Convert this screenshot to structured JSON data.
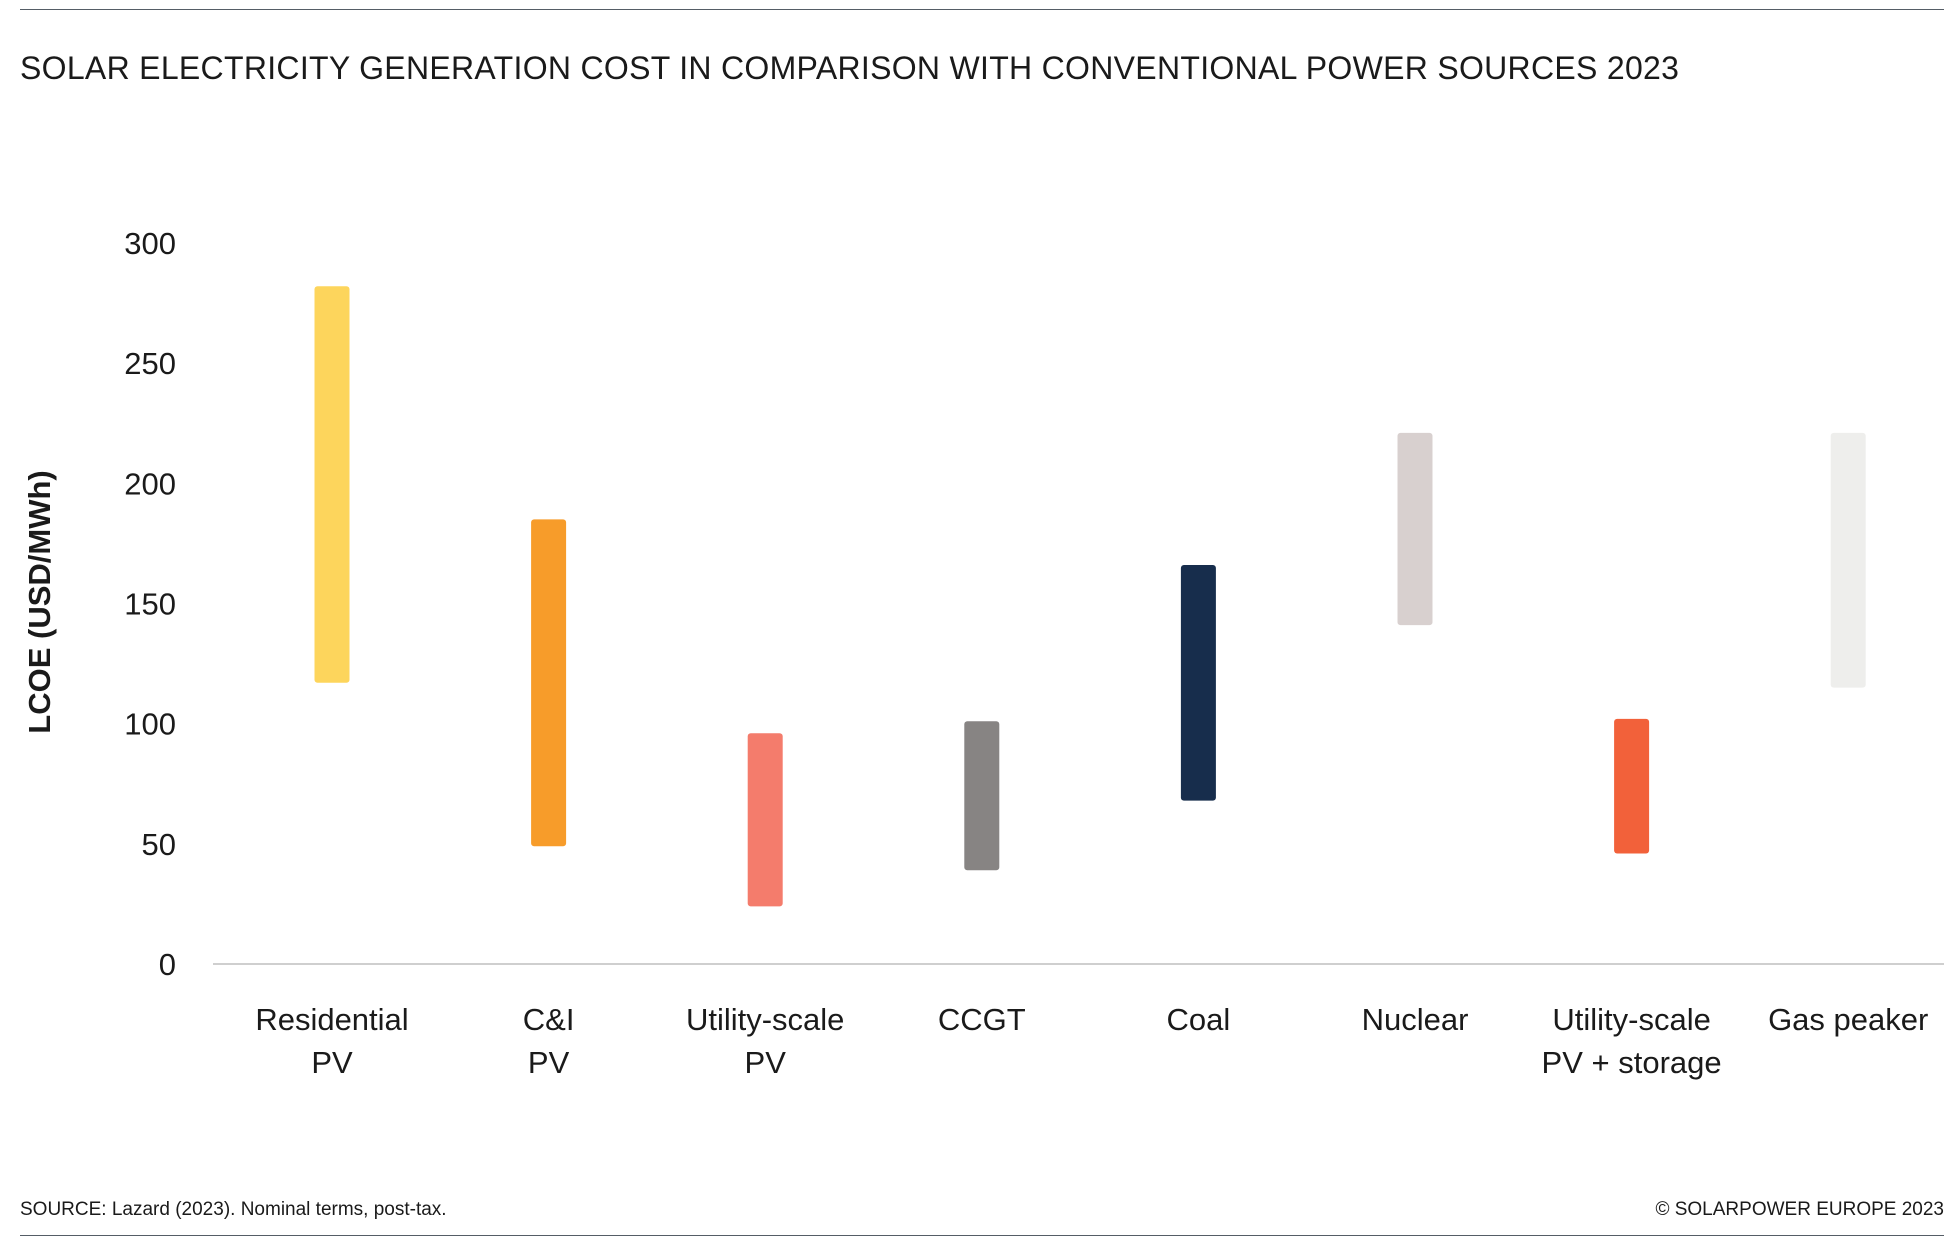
{
  "title": "SOLAR ELECTRICITY GENERATION COST IN COMPARISON WITH CONVENTIONAL POWER SOURCES 2023",
  "footer": {
    "source": "SOURCE: Lazard (2023). Nominal terms, post-tax.",
    "copyright": "© SOLARPOWER EUROPE 2023"
  },
  "chart_data": {
    "type": "bar",
    "subtype": "floating-range",
    "title": "SOLAR ELECTRICITY GENERATION COST IN COMPARISON WITH CONVENTIONAL POWER SOURCES 2023",
    "ylabel": "LCOE (USD/MWh)",
    "xlabel": "",
    "ylim": [
      0,
      300
    ],
    "yticks": [
      0,
      50,
      100,
      150,
      200,
      250,
      300
    ],
    "grid": false,
    "categories": [
      [
        "Residential",
        "PV"
      ],
      [
        "C&I",
        "PV"
      ],
      [
        "Utility-scale",
        "PV"
      ],
      [
        "CCGT"
      ],
      [
        "Coal"
      ],
      [
        "Nuclear"
      ],
      [
        "Utility-scale",
        "PV + storage"
      ],
      [
        "Gas peaker"
      ]
    ],
    "ranges": [
      {
        "low": 117,
        "high": 282
      },
      {
        "low": 49,
        "high": 185
      },
      {
        "low": 24,
        "high": 96
      },
      {
        "low": 39,
        "high": 101
      },
      {
        "low": 68,
        "high": 166
      },
      {
        "low": 141,
        "high": 221
      },
      {
        "low": 46,
        "high": 102
      },
      {
        "low": 115,
        "high": 221
      }
    ],
    "colors": [
      "#FDD55C",
      "#F79C2A",
      "#F47C6C",
      "#878483",
      "#172D4C",
      "#D8D0CF",
      "#F2613A",
      "#EEEEEC"
    ]
  }
}
